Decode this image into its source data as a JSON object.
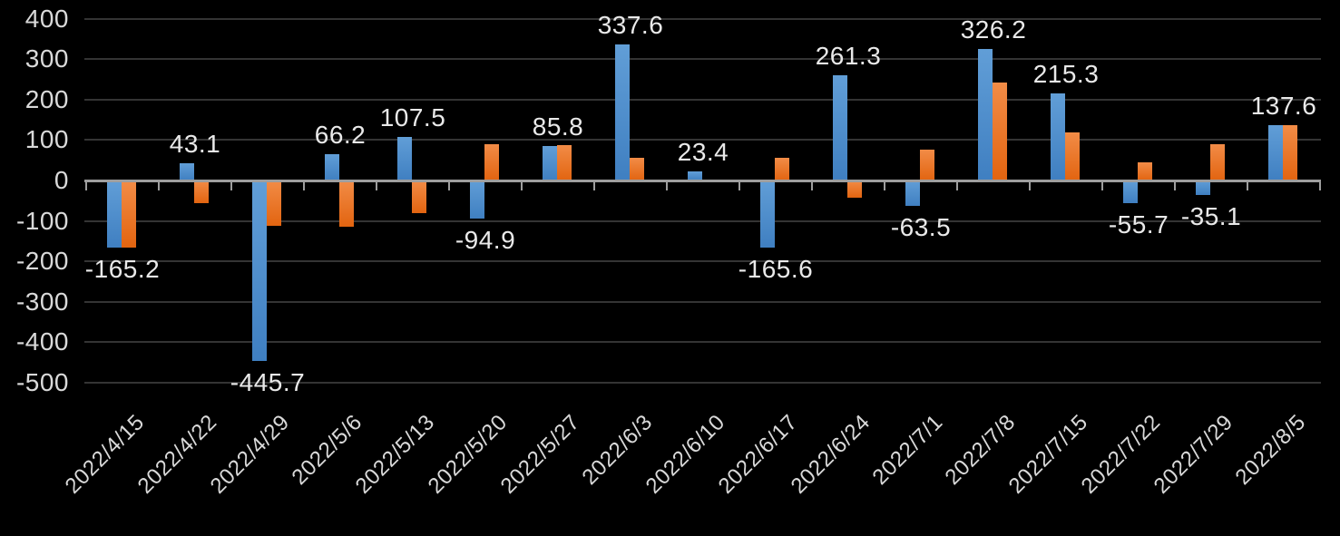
{
  "chart_data": {
    "type": "bar",
    "title": "",
    "legend": "none",
    "grid": true,
    "categories": [
      "2022/4/15",
      "2022/4/22",
      "2022/4/29",
      "2022/5/6",
      "2022/5/13",
      "2022/5/20",
      "2022/5/27",
      "2022/6/3",
      "2022/6/10",
      "2022/6/17",
      "2022/6/24",
      "2022/7/1",
      "2022/7/8",
      "2022/7/15",
      "2022/7/22",
      "2022/7/29",
      "2022/8/5"
    ],
    "series": [
      {
        "name": "blue-series",
        "values": [
          -165.2,
          43.1,
          -445.7,
          66.2,
          107.5,
          -94.9,
          85.8,
          337.6,
          23.4,
          -165.6,
          261.3,
          -63.5,
          326.2,
          215.3,
          -55.7,
          -35.1,
          137.6
        ],
        "data_labels": [
          "-165.2",
          "43.1",
          "-445.7",
          "66.2",
          "107.5",
          "-94.9",
          "85.8",
          "337.6",
          "23.4",
          "-165.6",
          "261.3",
          "-63.5",
          "326.2",
          "215.3",
          "-55.7",
          "-35.1",
          "137.6"
        ],
        "gradient_top": "#619ed7",
        "gradient_bottom": "#3f7fc1"
      },
      {
        "name": "orange-series",
        "values": [
          -166,
          -55,
          -113,
          -115,
          -80,
          90,
          87,
          55,
          -4,
          57,
          -43,
          76,
          243,
          120,
          45,
          90,
          138
        ],
        "data_labels": [],
        "gradient_top": "#f28c47",
        "gradient_bottom": "#e26410"
      }
    ],
    "y_axis": {
      "ticks": [
        400,
        300,
        200,
        100,
        0,
        -100,
        -200,
        -300,
        -400,
        -500
      ],
      "min": -500,
      "max": 400
    },
    "colors": {
      "background": "#000000",
      "gridline": "#343434",
      "axis_line": "#9e9e9e",
      "axis_text": "#d9d9d9",
      "data_label_text": "#e9e9e9"
    }
  }
}
